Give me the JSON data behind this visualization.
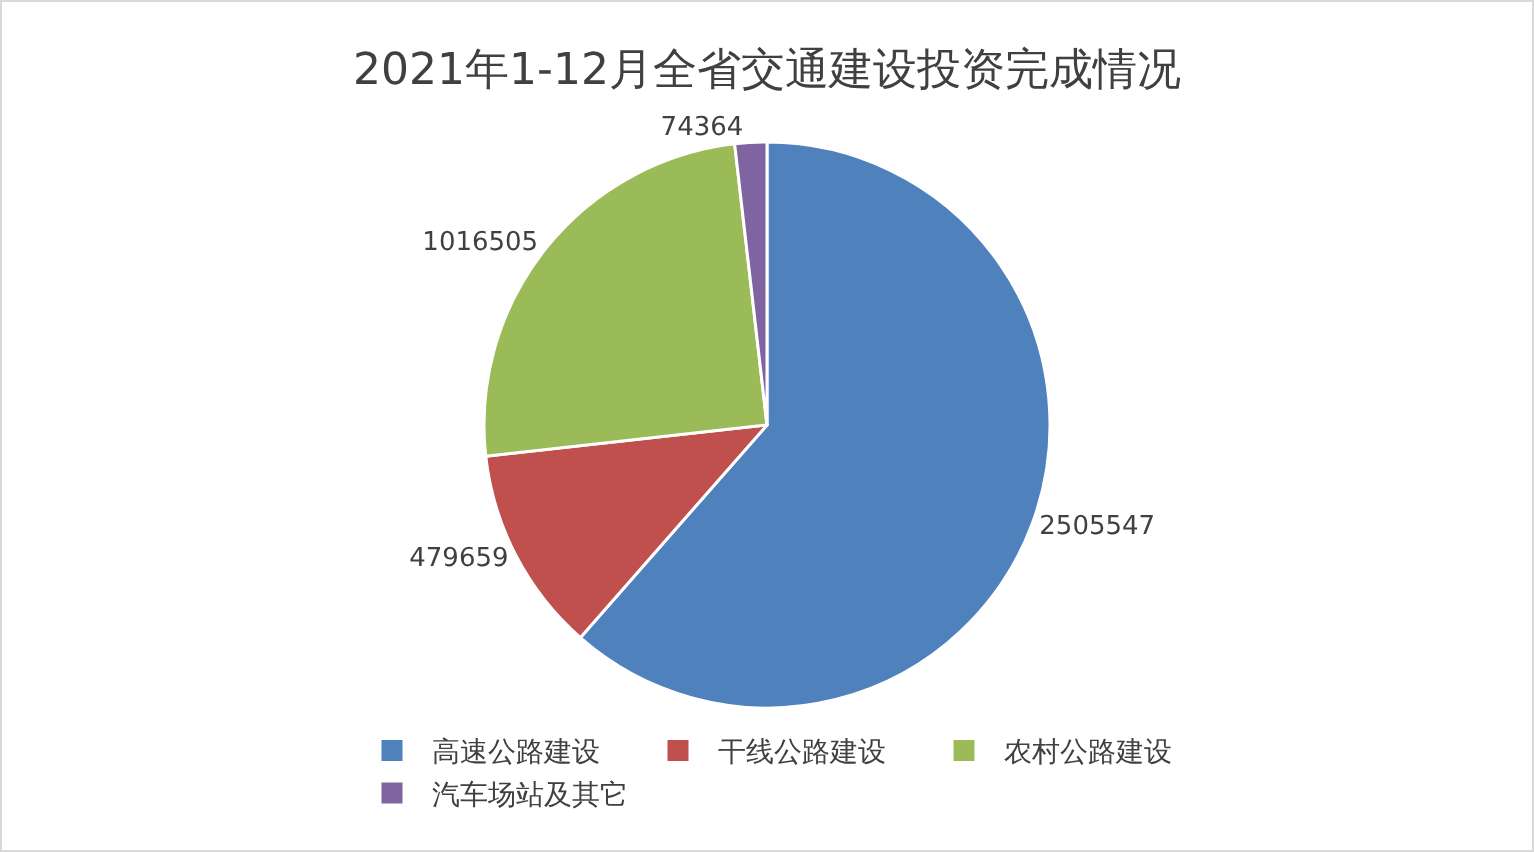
{
  "chart_data": {
    "type": "pie",
    "title": "2021年1-12月全省交通建设投资完成情况",
    "categories": [
      "高速公路建设",
      "干线公路建设",
      "农村公路建设",
      "汽车场站及其它"
    ],
    "values": [
      2505547,
      479659,
      1016505,
      74364
    ],
    "colors": [
      "#4f81bd",
      "#c0504d",
      "#9bbb59",
      "#8064a2"
    ],
    "data_labels": true,
    "legend": "bottom"
  }
}
